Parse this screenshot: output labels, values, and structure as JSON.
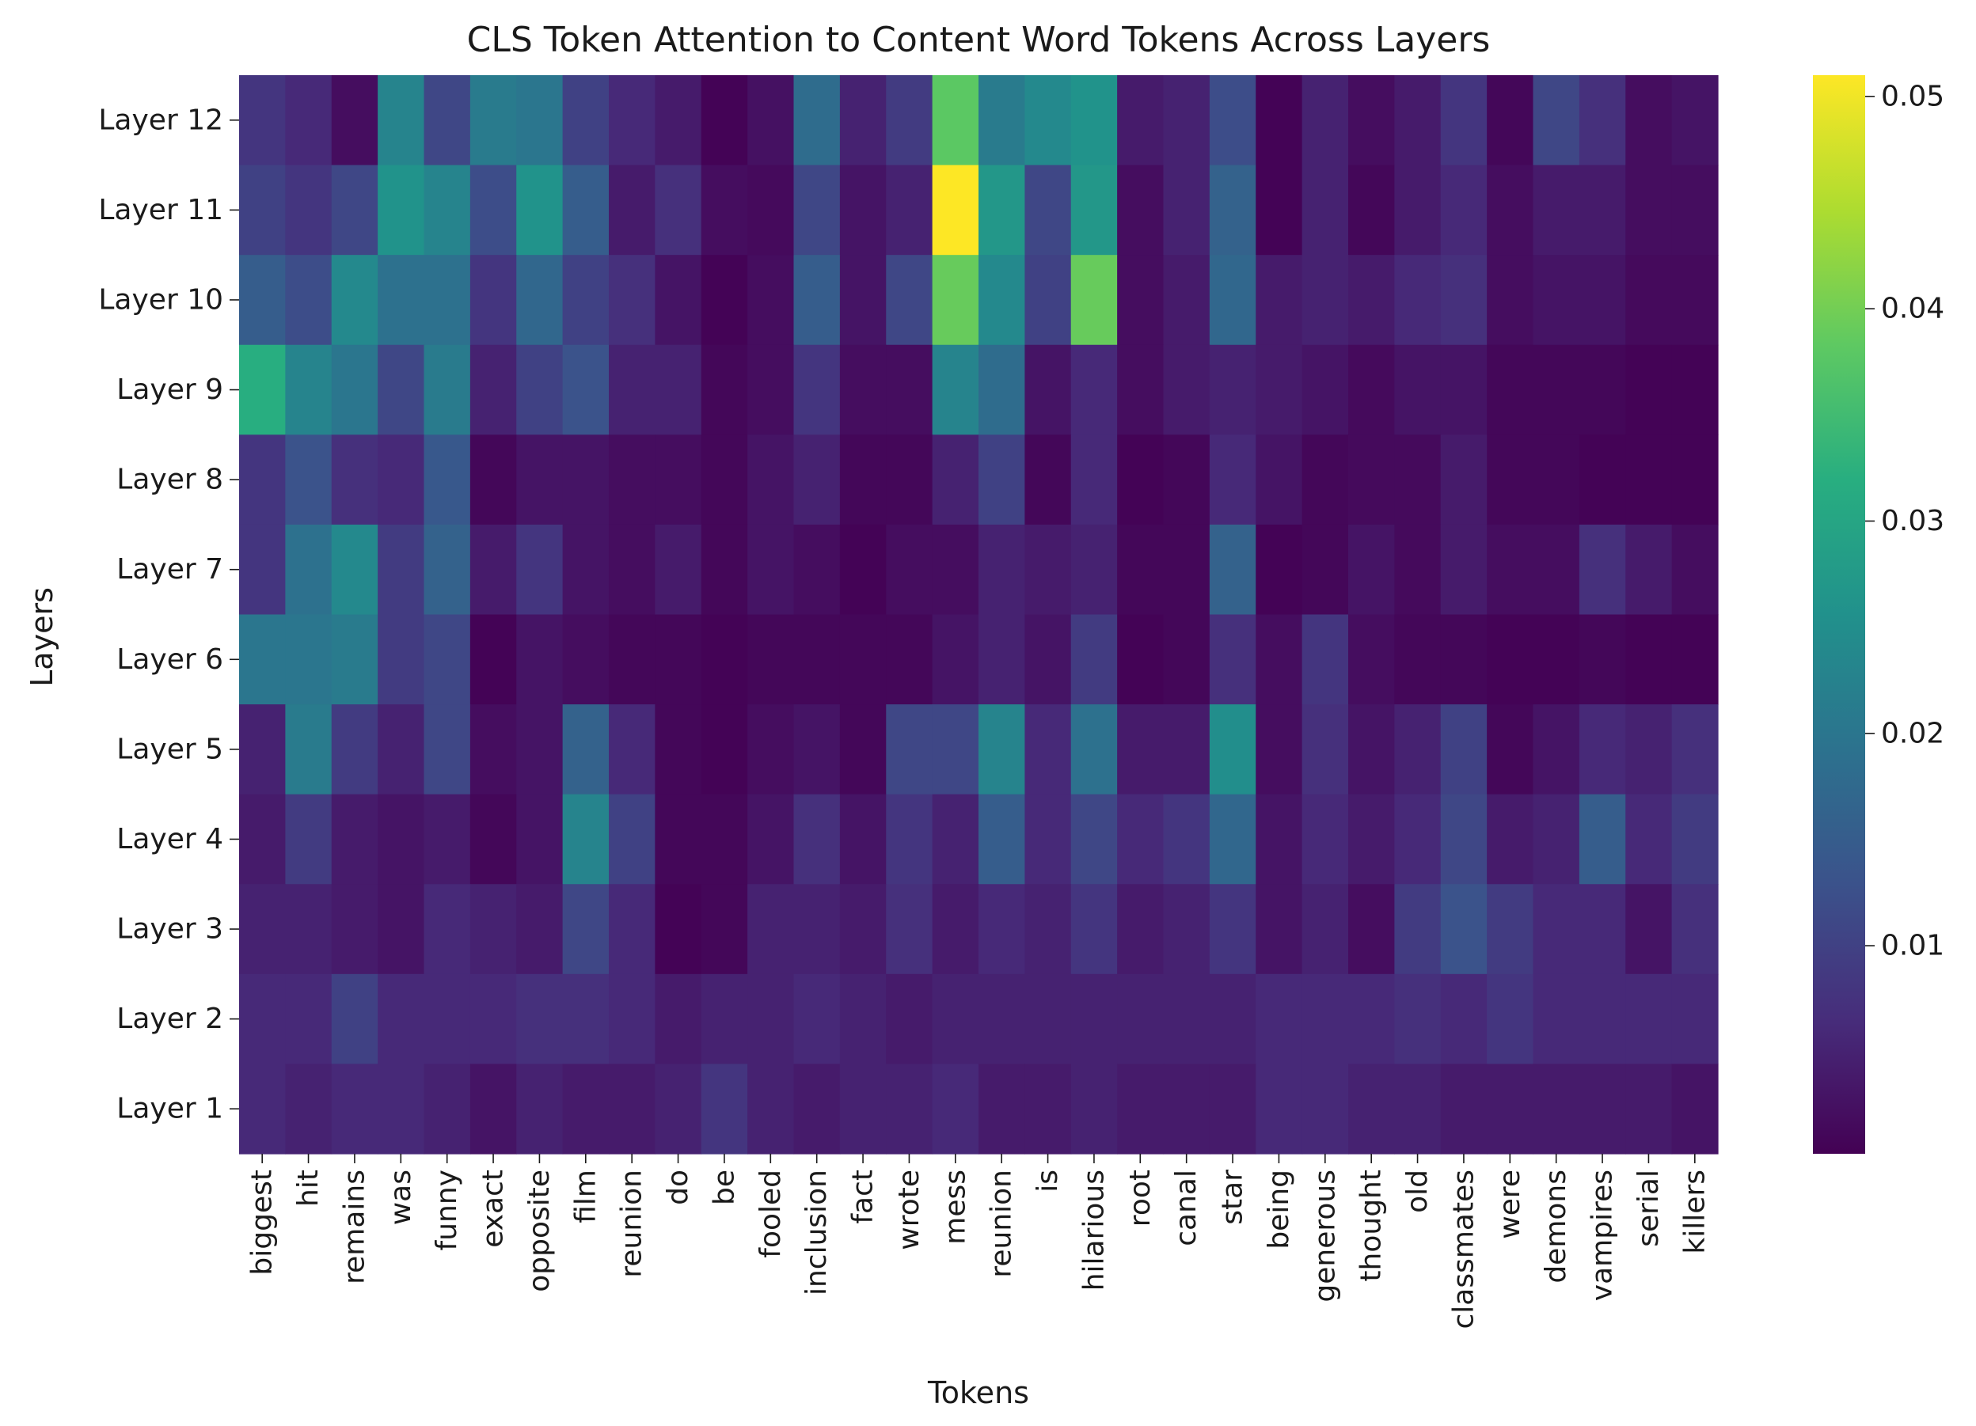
{
  "chart_data": {
    "type": "heatmap",
    "title": "CLS Token Attention to Content Word Tokens Across Layers",
    "xlabel": "Tokens",
    "ylabel": "Layers",
    "colormap": "viridis",
    "colorbar": {
      "range": [
        0.0002,
        0.051
      ],
      "ticks": [
        0.01,
        0.02,
        0.03,
        0.04,
        0.05
      ],
      "tick_labels": [
        "0.01",
        "0.02",
        "0.03",
        "0.04",
        "0.05"
      ]
    },
    "x_tokens": [
      "biggest",
      "hit",
      "remains",
      "was",
      "funny",
      "exact",
      "opposite",
      "film",
      "reunion",
      "do",
      "be",
      "fooled",
      "inclusion",
      "fact",
      "wrote",
      "mess",
      "reunion",
      "is",
      "hilarious",
      "root",
      "canal",
      "star",
      "being",
      "generous",
      "thought",
      "old",
      "classmates",
      "were",
      "demons",
      "vampires",
      "serial",
      "killers"
    ],
    "y_layers": [
      "Layer 12",
      "Layer 11",
      "Layer 10",
      "Layer 9",
      "Layer 8",
      "Layer 7",
      "Layer 6",
      "Layer 5",
      "Layer 4",
      "Layer 3",
      "Layer 2",
      "Layer 1"
    ],
    "values": [
      [
        0.008,
        0.006,
        0.002,
        0.023,
        0.011,
        0.021,
        0.02,
        0.01,
        0.006,
        0.004,
        0.0005,
        0.0025,
        0.018,
        0.005,
        0.009,
        0.038,
        0.021,
        0.024,
        0.026,
        0.004,
        0.005,
        0.012,
        0.0005,
        0.005,
        0.002,
        0.004,
        0.008,
        0.001,
        0.011,
        0.007,
        0.002,
        0.003
      ],
      [
        0.01,
        0.008,
        0.011,
        0.026,
        0.023,
        0.012,
        0.026,
        0.015,
        0.004,
        0.007,
        0.002,
        0.0015,
        0.011,
        0.003,
        0.005,
        0.051,
        0.027,
        0.011,
        0.027,
        0.002,
        0.005,
        0.016,
        0.0005,
        0.005,
        0.001,
        0.004,
        0.006,
        0.002,
        0.004,
        0.004,
        0.002,
        0.002
      ],
      [
        0.015,
        0.012,
        0.024,
        0.019,
        0.019,
        0.008,
        0.017,
        0.01,
        0.007,
        0.003,
        0.0005,
        0.002,
        0.015,
        0.003,
        0.011,
        0.039,
        0.024,
        0.01,
        0.039,
        0.002,
        0.004,
        0.017,
        0.004,
        0.005,
        0.004,
        0.006,
        0.007,
        0.002,
        0.003,
        0.003,
        0.0015,
        0.0015
      ],
      [
        0.032,
        0.023,
        0.02,
        0.011,
        0.021,
        0.005,
        0.01,
        0.013,
        0.005,
        0.005,
        0.001,
        0.002,
        0.008,
        0.002,
        0.002,
        0.023,
        0.018,
        0.003,
        0.006,
        0.002,
        0.004,
        0.005,
        0.004,
        0.003,
        0.0015,
        0.003,
        0.003,
        0.001,
        0.001,
        0.001,
        0.0005,
        0.0005
      ],
      [
        0.008,
        0.013,
        0.007,
        0.006,
        0.014,
        0.001,
        0.003,
        0.003,
        0.002,
        0.002,
        0.001,
        0.003,
        0.005,
        0.001,
        0.001,
        0.005,
        0.01,
        0.001,
        0.006,
        0.0005,
        0.001,
        0.006,
        0.003,
        0.001,
        0.0015,
        0.0015,
        0.004,
        0.001,
        0.001,
        0.0005,
        0.0005,
        0.0005
      ],
      [
        0.008,
        0.019,
        0.024,
        0.009,
        0.016,
        0.004,
        0.008,
        0.003,
        0.002,
        0.004,
        0.001,
        0.003,
        0.002,
        0.0005,
        0.002,
        0.002,
        0.005,
        0.004,
        0.005,
        0.001,
        0.001,
        0.016,
        0.0005,
        0.001,
        0.003,
        0.0015,
        0.004,
        0.002,
        0.002,
        0.007,
        0.004,
        0.002
      ],
      [
        0.02,
        0.02,
        0.021,
        0.009,
        0.011,
        0.0005,
        0.003,
        0.002,
        0.001,
        0.001,
        0.0005,
        0.001,
        0.001,
        0.001,
        0.001,
        0.003,
        0.005,
        0.003,
        0.009,
        0.0005,
        0.001,
        0.007,
        0.002,
        0.008,
        0.002,
        0.001,
        0.001,
        0.0005,
        0.0005,
        0.001,
        0.0005,
        0.0005
      ],
      [
        0.005,
        0.021,
        0.009,
        0.005,
        0.011,
        0.002,
        0.003,
        0.016,
        0.006,
        0.001,
        0.0005,
        0.002,
        0.003,
        0.001,
        0.011,
        0.011,
        0.023,
        0.006,
        0.019,
        0.004,
        0.004,
        0.025,
        0.002,
        0.007,
        0.003,
        0.005,
        0.01,
        0.001,
        0.003,
        0.006,
        0.005,
        0.007
      ],
      [
        0.004,
        0.009,
        0.004,
        0.003,
        0.004,
        0.001,
        0.003,
        0.023,
        0.01,
        0.001,
        0.001,
        0.003,
        0.007,
        0.003,
        0.008,
        0.005,
        0.015,
        0.006,
        0.011,
        0.006,
        0.008,
        0.017,
        0.003,
        0.006,
        0.004,
        0.006,
        0.011,
        0.004,
        0.005,
        0.015,
        0.006,
        0.009
      ],
      [
        0.005,
        0.005,
        0.004,
        0.003,
        0.006,
        0.005,
        0.004,
        0.011,
        0.006,
        0.0005,
        0.001,
        0.005,
        0.005,
        0.004,
        0.007,
        0.004,
        0.006,
        0.005,
        0.008,
        0.004,
        0.005,
        0.008,
        0.003,
        0.005,
        0.002,
        0.009,
        0.013,
        0.009,
        0.006,
        0.006,
        0.003,
        0.007
      ],
      [
        0.006,
        0.006,
        0.01,
        0.006,
        0.006,
        0.006,
        0.007,
        0.007,
        0.006,
        0.004,
        0.005,
        0.005,
        0.006,
        0.005,
        0.004,
        0.005,
        0.005,
        0.005,
        0.005,
        0.005,
        0.005,
        0.005,
        0.006,
        0.006,
        0.006,
        0.007,
        0.006,
        0.008,
        0.006,
        0.006,
        0.006,
        0.006
      ],
      [
        0.006,
        0.005,
        0.006,
        0.006,
        0.005,
        0.003,
        0.005,
        0.004,
        0.004,
        0.005,
        0.008,
        0.005,
        0.004,
        0.005,
        0.005,
        0.006,
        0.004,
        0.004,
        0.005,
        0.004,
        0.004,
        0.004,
        0.006,
        0.006,
        0.005,
        0.005,
        0.004,
        0.004,
        0.004,
        0.004,
        0.004,
        0.003
      ]
    ]
  }
}
